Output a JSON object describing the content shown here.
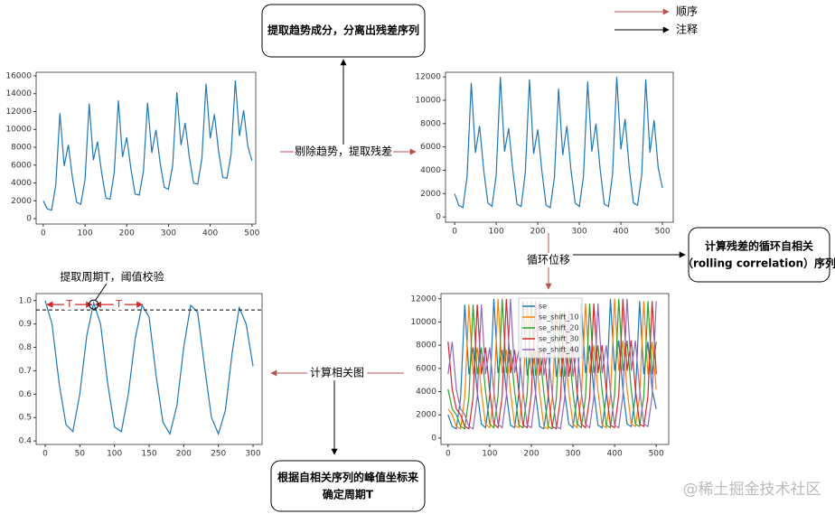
{
  "legend": {
    "order": "顺序",
    "note": "注释"
  },
  "boxes": [
    {
      "lines": [
        "提取趋势成分，分离出残差序列"
      ]
    },
    {
      "lines": [
        "计算残差的循环自相关",
        "（rolling correlation）序列"
      ]
    },
    {
      "lines": [
        "根据自相关序列的峰值坐标来",
        "确定周期T"
      ]
    }
  ],
  "arrow_labels": [
    "剔除趋势，提取残差",
    "循环位移",
    "计算相关图"
  ],
  "annotation": {
    "label": "提取周期T，阈值校验",
    "period_label": "T",
    "threshold": 0.96,
    "peaks": [
      0,
      70,
      143
    ]
  },
  "watermark": "@稀土掘金技术社区",
  "chart_data": [
    {
      "type": "line",
      "color": "#1f77b4",
      "x": [
        0,
        10,
        20,
        30,
        40,
        50,
        60,
        70,
        80,
        90,
        100,
        110,
        120,
        130,
        140,
        150,
        160,
        170,
        180,
        190,
        200,
        210,
        220,
        230,
        240,
        250,
        260,
        270,
        280,
        290,
        300,
        310,
        320,
        330,
        340,
        350,
        360,
        370,
        380,
        390,
        400,
        410,
        420,
        430,
        440,
        450,
        460,
        470,
        480,
        490,
        500
      ],
      "values": [
        2000,
        1080,
        960,
        3740,
        11820,
        5900,
        8280,
        4560,
        1840,
        1620,
        4400,
        12880,
        6560,
        8640,
        5120,
        2300,
        2180,
        5160,
        13240,
        6920,
        9100,
        5580,
        2760,
        2640,
        5320,
        13000,
        7380,
        9960,
        6240,
        3520,
        3300,
        5980,
        14160,
        8240,
        10720,
        6900,
        3980,
        3860,
        6740,
        15120,
        9000,
        11680,
        7560,
        4640,
        4520,
        7200,
        15480,
        9260,
        12140,
        8120,
        6500
      ],
      "xlim": [
        -17,
        509
      ],
      "ylim": [
        -600,
        16400
      ],
      "xticks": [
        0,
        100,
        200,
        300,
        400,
        500
      ],
      "yticks": [
        0,
        2000,
        4000,
        6000,
        8000,
        10000,
        12000,
        14000,
        16000
      ]
    },
    {
      "type": "line",
      "color": "#1f77b4",
      "x": [
        0,
        10,
        20,
        30,
        40,
        50,
        60,
        70,
        80,
        90,
        100,
        110,
        120,
        130,
        140,
        150,
        160,
        170,
        180,
        190,
        200,
        210,
        220,
        230,
        240,
        250,
        260,
        270,
        280,
        290,
        300,
        310,
        320,
        330,
        340,
        350,
        360,
        370,
        380,
        390,
        400,
        410,
        420,
        430,
        440,
        450,
        460,
        470,
        480,
        490,
        500
      ],
      "values": [
        2000,
        1000,
        800,
        3500,
        11500,
        5500,
        7800,
        4000,
        1200,
        900,
        3600,
        12000,
        5600,
        7600,
        4000,
        1100,
        900,
        3800,
        11800,
        5400,
        7500,
        3900,
        1000,
        800,
        3400,
        11000,
        5300,
        7800,
        4000,
        1200,
        900,
        3500,
        11600,
        5600,
        8000,
        4100,
        1100,
        900,
        3700,
        12000,
        5800,
        8400,
        4200,
        1200,
        1000,
        3600,
        11800,
        5500,
        8300,
        4200,
        2500
      ],
      "xlim": [
        -22,
        526
      ],
      "ylim": [
        -450,
        12400
      ],
      "xticks": [
        0,
        100,
        200,
        300,
        400,
        500
      ],
      "yticks": [
        0,
        2000,
        4000,
        6000,
        8000,
        10000,
        12000
      ]
    },
    {
      "type": "line",
      "x": [
        0,
        10,
        20,
        30,
        40,
        50,
        60,
        70,
        80,
        90,
        100,
        110,
        120,
        130,
        140,
        150,
        160,
        170,
        180,
        190,
        200,
        210,
        220,
        230,
        240,
        250,
        260,
        270,
        280,
        290,
        300,
        310,
        320,
        330,
        340,
        350,
        360,
        370,
        380,
        390,
        400,
        410,
        420,
        430,
        440,
        450,
        460,
        470,
        480,
        490,
        500
      ],
      "series": [
        {
          "name": "se",
          "color": "#1f77b4",
          "values": [
            2000,
            1000,
            800,
            3500,
            11500,
            5500,
            7800,
            4000,
            1200,
            900,
            3600,
            12000,
            5600,
            7600,
            4000,
            1100,
            900,
            3800,
            11800,
            5400,
            7500,
            3900,
            1000,
            800,
            3400,
            11000,
            5300,
            7800,
            4000,
            1200,
            900,
            3500,
            11600,
            5600,
            8000,
            4100,
            1100,
            900,
            3700,
            12000,
            5800,
            8400,
            4200,
            1200,
            1000,
            3600,
            11800,
            5500,
            8300,
            4200,
            2500
          ]
        },
        {
          "name": "se_shift_10",
          "color": "#ff7f0e",
          "values": [
            2500,
            2000,
            1000,
            800,
            3500,
            11500,
            5500,
            7800,
            4000,
            1200,
            900,
            3600,
            12000,
            5600,
            7600,
            4000,
            1100,
            900,
            3800,
            11800,
            5400,
            7500,
            3900,
            1000,
            800,
            3400,
            11000,
            5300,
            7800,
            4000,
            1200,
            900,
            3500,
            11600,
            5600,
            8000,
            4100,
            1100,
            900,
            3700,
            12000,
            5800,
            8400,
            4200,
            1200,
            1000,
            3600,
            11800,
            5500,
            8300,
            4200
          ]
        },
        {
          "name": "se_shift_20",
          "color": "#2ca02c",
          "values": [
            4200,
            2500,
            2000,
            1000,
            800,
            3500,
            11500,
            5500,
            7800,
            4000,
            1200,
            900,
            3600,
            12000,
            5600,
            7600,
            4000,
            1100,
            900,
            3800,
            11800,
            5400,
            7500,
            3900,
            1000,
            800,
            3400,
            11000,
            5300,
            7800,
            4000,
            1200,
            900,
            3500,
            11600,
            5600,
            8000,
            4100,
            1100,
            900,
            3700,
            12000,
            5800,
            8400,
            4200,
            1200,
            1000,
            3600,
            11800,
            5500,
            8300
          ]
        },
        {
          "name": "se_shift_30",
          "color": "#d62728",
          "values": [
            8300,
            4200,
            2500,
            2000,
            1000,
            800,
            3500,
            11500,
            5500,
            7800,
            4000,
            1200,
            900,
            3600,
            12000,
            5600,
            7600,
            4000,
            1100,
            900,
            3800,
            11800,
            5400,
            7500,
            3900,
            1000,
            800,
            3400,
            11000,
            5300,
            7800,
            4000,
            1200,
            900,
            3500,
            11600,
            5600,
            8000,
            4100,
            1100,
            900,
            3700,
            12000,
            5800,
            8400,
            4200,
            1200,
            1000,
            3600,
            11800,
            5500
          ]
        },
        {
          "name": "se_shift_40",
          "color": "#9467bd",
          "values": [
            5500,
            8300,
            4200,
            2500,
            2000,
            1000,
            800,
            3500,
            11500,
            5500,
            7800,
            4000,
            1200,
            900,
            3600,
            12000,
            5600,
            7600,
            4000,
            1100,
            900,
            3800,
            11800,
            5400,
            7500,
            3900,
            1000,
            800,
            3400,
            11000,
            5300,
            7800,
            4000,
            1200,
            900,
            3500,
            11600,
            5600,
            8000,
            4100,
            1100,
            900,
            3700,
            12000,
            5800,
            8400,
            4200,
            1200,
            1000,
            3600,
            11800
          ]
        }
      ],
      "xlim": [
        -17,
        530
      ],
      "ylim": [
        -550,
        12450
      ],
      "xticks": [
        0,
        100,
        200,
        300,
        400,
        500
      ],
      "yticks": [
        0,
        2000,
        4000,
        6000,
        8000,
        10000,
        12000
      ]
    },
    {
      "type": "line",
      "color": "#1f77b4",
      "x": [
        0,
        10,
        20,
        30,
        40,
        50,
        60,
        70,
        80,
        90,
        100,
        110,
        120,
        130,
        140,
        150,
        160,
        170,
        180,
        190,
        200,
        210,
        220,
        230,
        240,
        250,
        260,
        270,
        280,
        290,
        300
      ],
      "values": [
        1.0,
        0.9,
        0.65,
        0.47,
        0.44,
        0.6,
        0.85,
        0.99,
        0.9,
        0.65,
        0.46,
        0.44,
        0.6,
        0.84,
        0.98,
        0.93,
        0.68,
        0.48,
        0.43,
        0.55,
        0.8,
        0.98,
        0.95,
        0.72,
        0.5,
        0.43,
        0.53,
        0.78,
        0.97,
        0.9,
        0.72
      ],
      "xlim": [
        -13,
        313
      ],
      "ylim": [
        0.385,
        1.03
      ],
      "xticks": [
        0,
        50,
        100,
        150,
        200,
        250,
        300
      ],
      "yticks": [
        0.4,
        0.5,
        0.6,
        0.7,
        0.8,
        0.9,
        {
          "value": 1,
          "label": "1.0"
        }
      ]
    }
  ]
}
